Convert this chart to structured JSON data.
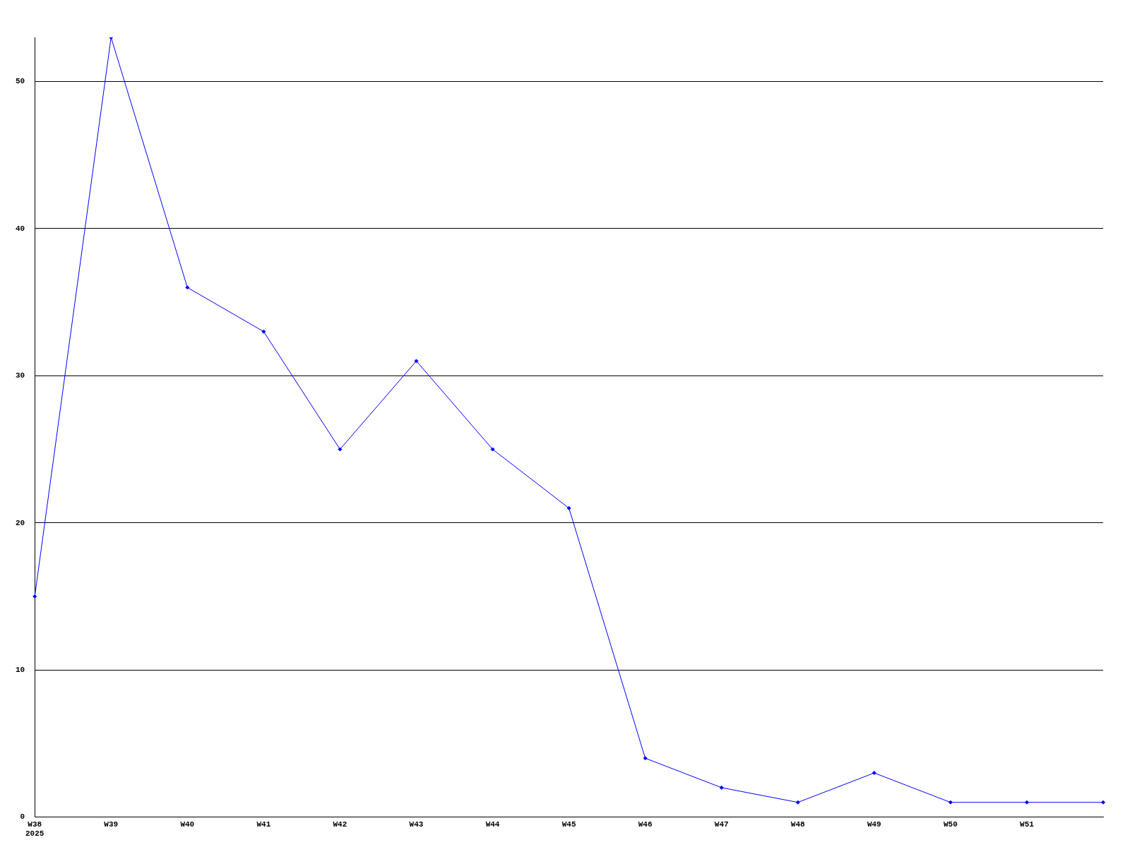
{
  "chart_data": {
    "type": "line",
    "categories": [
      "W38\n2025",
      "W39",
      "W40",
      "W41",
      "W42",
      "W43",
      "W44",
      "W45",
      "W46",
      "W47",
      "W48",
      "W49",
      "W50",
      "W51",
      null
    ],
    "series": [
      {
        "color": "#0000ff",
        "values": [
          15,
          53,
          36,
          33,
          25,
          31,
          25,
          21,
          4,
          2,
          1,
          3,
          1,
          1,
          1
        ]
      }
    ],
    "ylim": [
      0,
      53
    ],
    "yticks": [
      0,
      10,
      20,
      30,
      40,
      50
    ],
    "grid": "y",
    "legend": false,
    "marker": "diamond",
    "line_style": "solid"
  }
}
